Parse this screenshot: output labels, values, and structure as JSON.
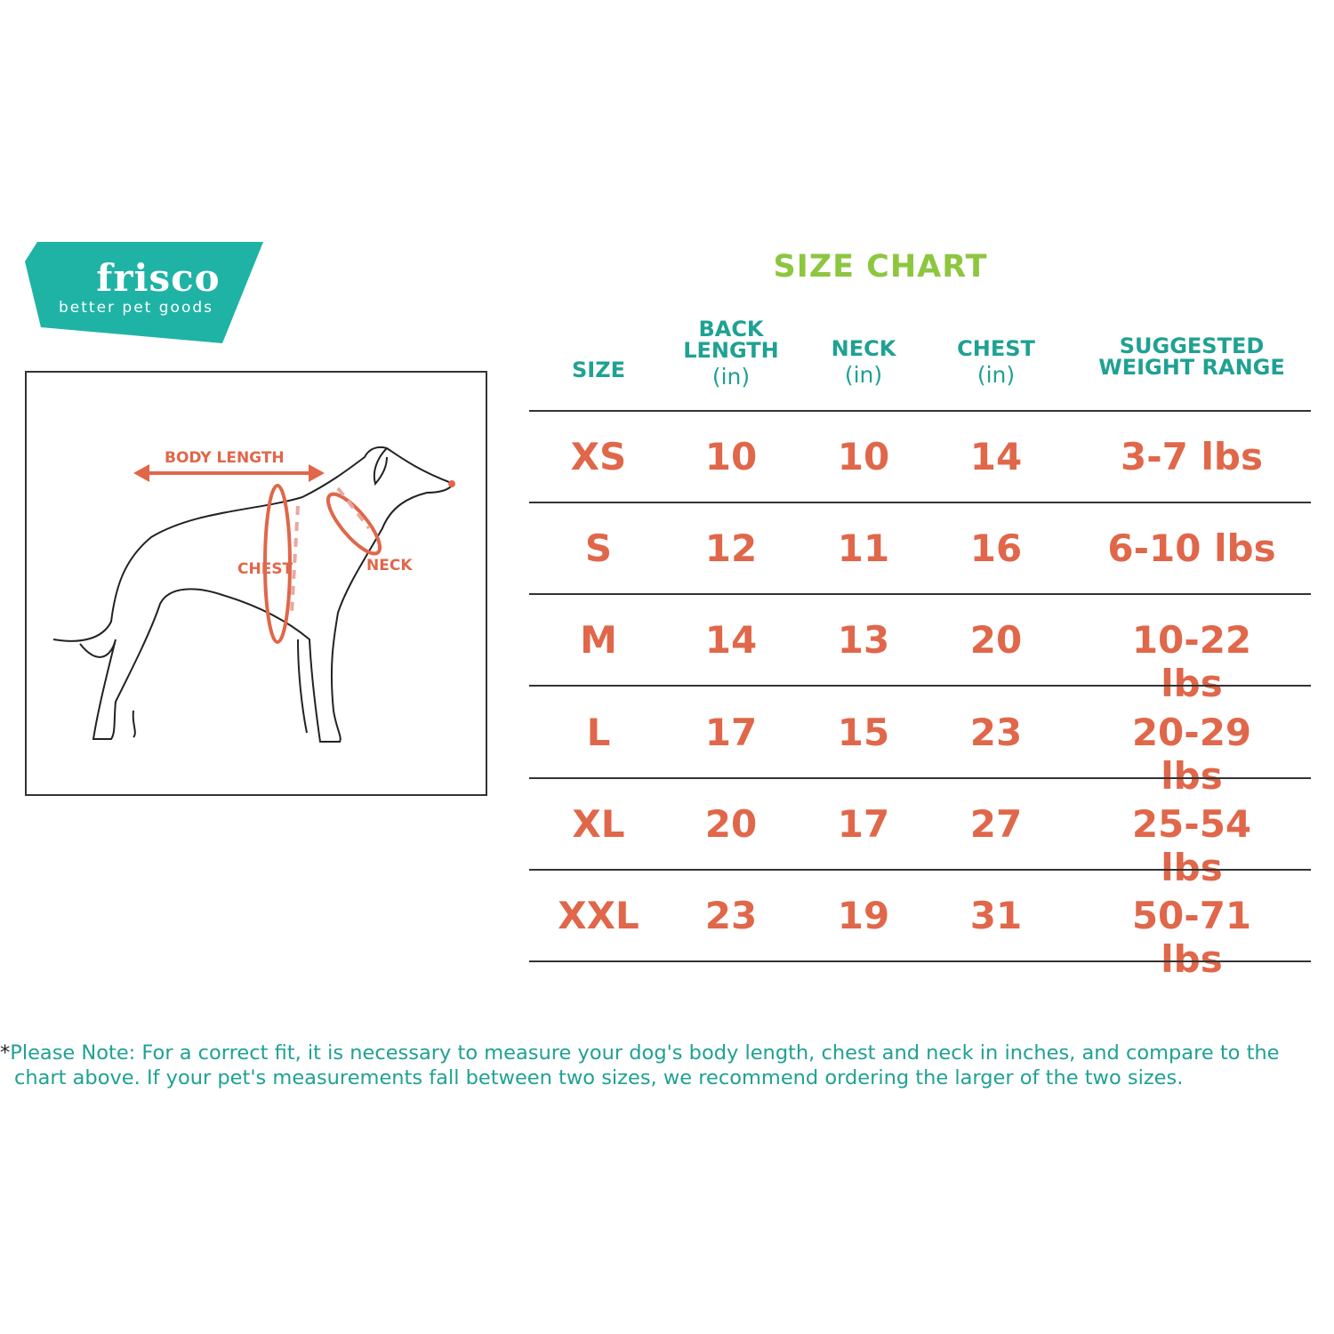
{
  "brand": {
    "name": "frisco",
    "tagline": "better pet goods",
    "color": "#1fb3a5"
  },
  "diagram": {
    "labels": {
      "body_length": "BODY LENGTH",
      "chest": "CHEST",
      "neck": "NECK"
    },
    "accent": "#e0674a"
  },
  "chart": {
    "title": "SIZE  CHART",
    "title_color": "#8dc63f",
    "header_color": "#1fa193",
    "value_color": "#e0674a",
    "headers": [
      {
        "lines": [
          "SIZE"
        ],
        "unit": ""
      },
      {
        "lines": [
          "BACK",
          "LENGTH"
        ],
        "unit": "(in)"
      },
      {
        "lines": [
          "NECK"
        ],
        "unit": "(in)"
      },
      {
        "lines": [
          "CHEST"
        ],
        "unit": "(in)"
      },
      {
        "lines": [
          "SUGGESTED",
          "WEIGHT RANGE"
        ],
        "unit": ""
      }
    ],
    "rows": [
      [
        "XS",
        "10",
        "10",
        "14",
        "3-7 lbs"
      ],
      [
        "S",
        "12",
        "11",
        "16",
        "6-10 lbs"
      ],
      [
        "M",
        "14",
        "13",
        "20",
        "10-22 lbs"
      ],
      [
        "L",
        "17",
        "15",
        "23",
        "20-29 lbs"
      ],
      [
        "XL",
        "20",
        "17",
        "27",
        "25-54 lbs"
      ],
      [
        "XXL",
        "23",
        "19",
        "31",
        "50-71 lbs"
      ]
    ]
  },
  "note": {
    "asterisk": "*",
    "line1": "Please Note: For a correct fit, it is necessary to measure your dog's body length, chest and neck in inches, and compare to the",
    "line2": "chart above. If your pet's measurements fall between two sizes, we recommend ordering the larger of the two sizes."
  }
}
